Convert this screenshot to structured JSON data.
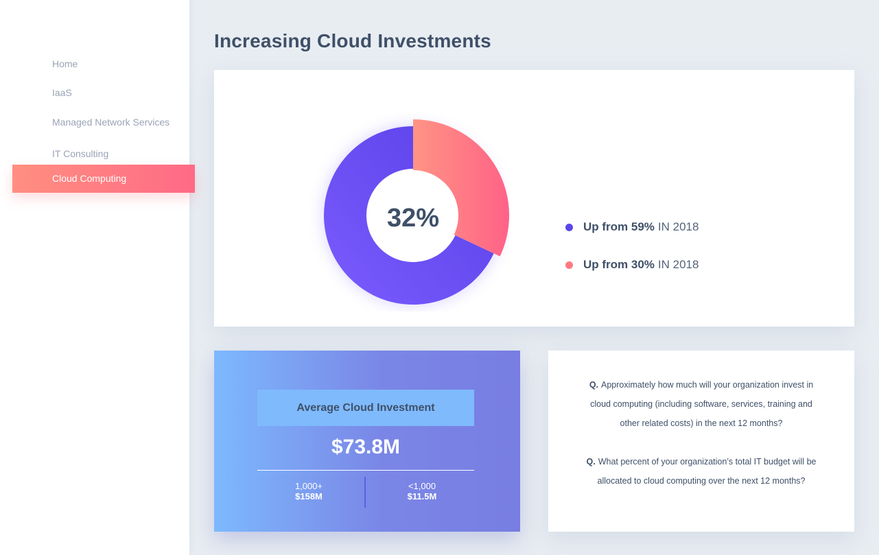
{
  "sidebar": {
    "items": [
      {
        "label": "Home"
      },
      {
        "label": "IaaS"
      },
      {
        "label": "Managed Network Services"
      },
      {
        "label": "IT Consulting"
      },
      {
        "label": "Cloud Computing",
        "active": true
      }
    ]
  },
  "page": {
    "title": "Increasing Cloud Investments"
  },
  "donut": {
    "center_label": "32%",
    "legend": [
      {
        "strong": "Up from 59%",
        "rest": "IN 2018",
        "color": "#5b45ea"
      },
      {
        "strong": "Up from 30%",
        "rest": "IN 2018",
        "color": "#ff7a80"
      }
    ]
  },
  "chart_data": {
    "type": "pie",
    "donut": true,
    "slices": [
      {
        "value": 32,
        "color": "#ff7a84"
      },
      {
        "value": 68,
        "color": "#6450f0"
      }
    ],
    "center_text": "32%"
  },
  "investment": {
    "label": "Average Cloud Investment",
    "value": "$73.8M",
    "columns": [
      {
        "label": "1,000+",
        "value": "$158M"
      },
      {
        "label": "<1,000",
        "value": "$11.5M"
      }
    ]
  },
  "questions": [
    {
      "mark": "Q.",
      "text": "Approximately how much will your organization invest in cloud computing (including software, services, training and other related costs) in the next 12 months?"
    },
    {
      "mark": "Q.",
      "text": "What percent of your organization’s total IT budget will be allocated to cloud computing over the next 12 months?"
    }
  ]
}
